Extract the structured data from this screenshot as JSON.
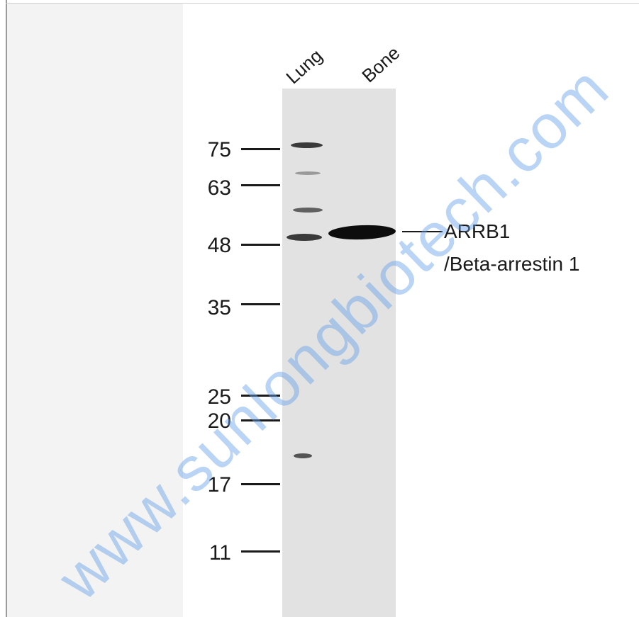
{
  "lanes": [
    {
      "label": "Lung"
    },
    {
      "label": "Bone"
    }
  ],
  "markers": [
    "75",
    "63",
    "48",
    "35",
    "25",
    "20",
    "17",
    "11"
  ],
  "target": {
    "line1": "ARRB1",
    "line2": "/Beta-arrestin 1"
  },
  "watermark": "www.sunlongbiotech.com",
  "colors": {
    "membrane": "#e2e2e2",
    "band": "#1a1a1a",
    "watermark": "#64a0e6"
  }
}
